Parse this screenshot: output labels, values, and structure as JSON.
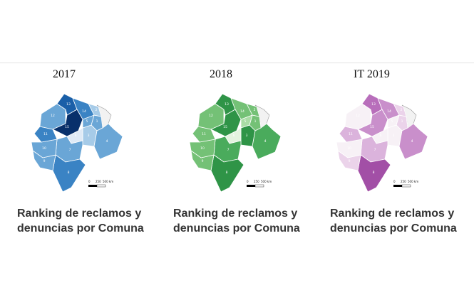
{
  "panels": [
    {
      "year": "2017",
      "caption_line1": "Ranking de reclamos y",
      "caption_line2": "denuncias por Comuna",
      "theme": "blue",
      "palette": [
        "#08306b",
        "#1a5fa8",
        "#3a83c4",
        "#6aa6d6",
        "#a6cbe8",
        "#dfeaf6"
      ],
      "comuna_levels": {
        "1": 3,
        "2": 4,
        "3": 4,
        "4": 3,
        "5": 3,
        "6": 5,
        "7": 3,
        "8": 2,
        "9": 3,
        "10": 3,
        "11": 2,
        "12": 3,
        "13": 1,
        "14": 2,
        "15": 0
      }
    },
    {
      "year": "2018",
      "caption_line1": "Ranking de reclamos y",
      "caption_line2": "denuncias por Comuna",
      "theme": "green",
      "palette": [
        "#1e7a3a",
        "#2f9447",
        "#4aab5c",
        "#74c176",
        "#a9dca5",
        "#e3f3df"
      ],
      "comuna_levels": {
        "1": 3,
        "2": 3,
        "3": 1,
        "4": 2,
        "5": 4,
        "6": 5,
        "7": 2,
        "8": 1,
        "9": 3,
        "10": 3,
        "11": 3,
        "12": 3,
        "13": 1,
        "14": 3,
        "15": 1
      }
    },
    {
      "year": "IT 2019",
      "caption_line1": "Ranking de reclamos y",
      "caption_line2": "denuncias por Comuna",
      "theme": "purple",
      "palette": [
        "#a24fa6",
        "#b86ebb",
        "#c98fcb",
        "#dbb3dc",
        "#ebd3ea",
        "#f7f1f6"
      ],
      "comuna_levels": {
        "1": 4,
        "2": 4,
        "3": 5,
        "4": 2,
        "5": 5,
        "6": 5,
        "7": 3,
        "8": 0,
        "9": 4,
        "10": 5,
        "11": 3,
        "12": 5,
        "13": 1,
        "14": 2,
        "15": 2
      }
    }
  ],
  "scale_bar": {
    "labels": [
      "0",
      "250",
      "500 km"
    ]
  }
}
